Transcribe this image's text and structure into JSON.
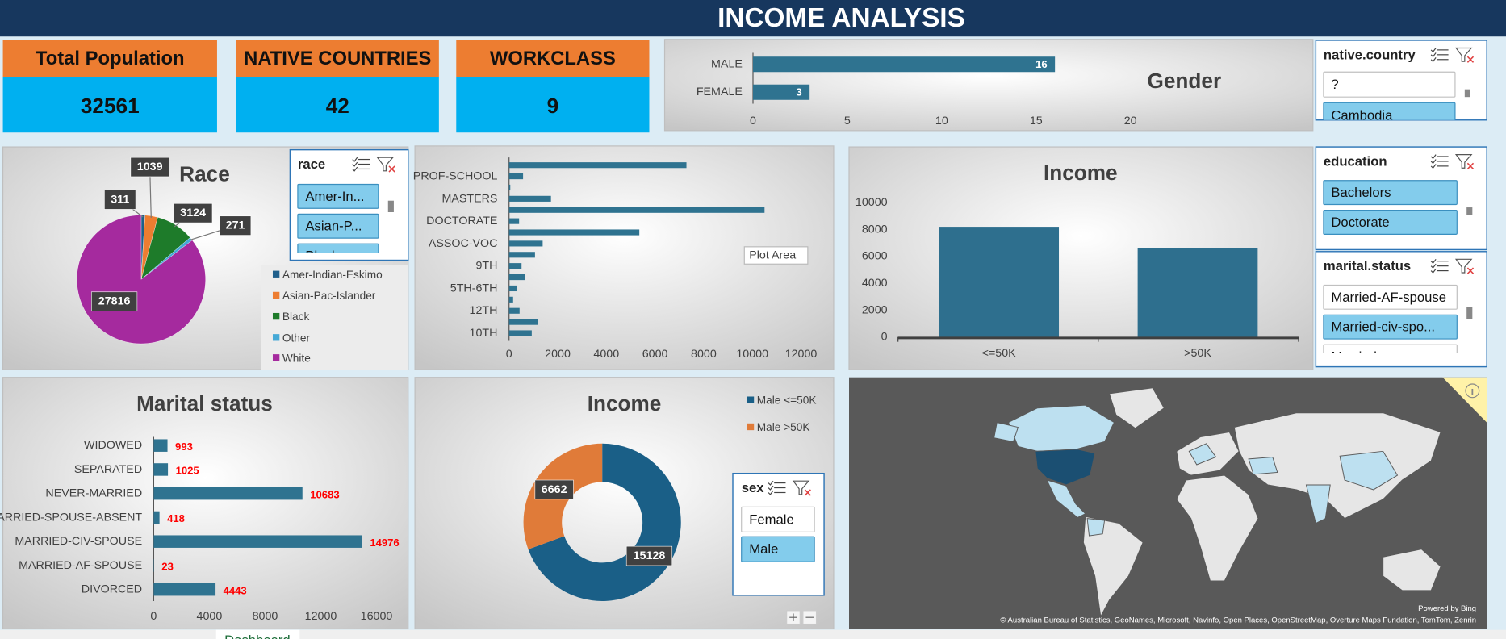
{
  "header": {
    "title": "INCOME ANALYSIS"
  },
  "kpis": [
    {
      "label": "Total Population",
      "value": 32561
    },
    {
      "label": "NATIVE COUNTRIES",
      "value": 42
    },
    {
      "label": "WORKCLASS",
      "value": 9
    }
  ],
  "chart_data": [
    {
      "type": "bar",
      "orientation": "horizontal",
      "title": "Gender",
      "categories": [
        "MALE",
        "FEMALE"
      ],
      "values": [
        16,
        3
      ],
      "color": "#2f7390",
      "data_labels": "inside_end",
      "label_color": "#ffffff",
      "xlim": [
        0,
        20
      ],
      "xticks": [
        0,
        5,
        10,
        15,
        20
      ]
    },
    {
      "type": "pie",
      "title": "Race",
      "categories": [
        "Amer-Indian-Eskimo",
        "Asian-Pac-Islander",
        "Black",
        "Other",
        "White"
      ],
      "values": [
        311,
        1039,
        3124,
        271,
        27816
      ],
      "colors": [
        "#1f5f8b",
        "#ed7d31",
        "#1e7b2a",
        "#45a9d6",
        "#a52a9e"
      ],
      "legend": "bottom-right"
    },
    {
      "type": "bar",
      "orientation": "horizontal",
      "categories": [
        null,
        "PROF-SCHOOL",
        null,
        "MASTERS",
        null,
        "DOCTORATE",
        null,
        "ASSOC-VOC",
        null,
        "9TH",
        null,
        "5TH-6TH",
        null,
        "12TH",
        null,
        "10TH"
      ],
      "values": [
        7291,
        576,
        51,
        1723,
        10501,
        413,
        5355,
        1382,
        1067,
        514,
        646,
        333,
        168,
        433,
        1175,
        933
      ],
      "color": "#2f7390",
      "annotation": "Plot Area",
      "xlim": [
        0,
        12000
      ],
      "xticks": [
        0,
        2000,
        4000,
        6000,
        8000,
        10000,
        12000
      ]
    },
    {
      "type": "column",
      "title": "Income",
      "categories": [
        "<=50K",
        ">50K"
      ],
      "values": [
        8200,
        6600
      ],
      "color": "#2e6f8e",
      "ylim": [
        0,
        10000
      ],
      "yticks": [
        0,
        2000,
        4000,
        6000,
        8000,
        10000
      ]
    },
    {
      "type": "bar",
      "orientation": "horizontal",
      "title": "Marital status",
      "categories": [
        "WIDOWED",
        "SEPARATED",
        "NEVER-MARRIED",
        "MARRIED-SPOUSE-ABSENT",
        "MARRIED-CIV-SPOUSE",
        "MARRIED-AF-SPOUSE",
        "DIVORCED"
      ],
      "values": [
        993,
        1025,
        10683,
        418,
        14976,
        23,
        4443
      ],
      "color": "#2f7390",
      "data_labels": "outside_end",
      "label_color": "#ff0000",
      "xlim": [
        0,
        16000
      ],
      "xticks": [
        0,
        4000,
        8000,
        12000,
        16000
      ]
    },
    {
      "type": "donut",
      "title": "Income",
      "categories": [
        "Male <=50K",
        "Male >50K"
      ],
      "values": [
        15128,
        6662
      ],
      "colors": [
        "#1a5f87",
        "#e07b39"
      ],
      "legend": "top-right"
    }
  ],
  "slicers": [
    {
      "title": "native.country",
      "items": [
        {
          "label": "?",
          "selected": false
        },
        {
          "label": "Cambodia",
          "selected": true
        }
      ]
    },
    {
      "title": "race",
      "items": [
        {
          "label": "Amer-In...",
          "selected": true
        },
        {
          "label": "Asian-P...",
          "selected": true
        },
        {
          "label": "Black",
          "selected": true
        }
      ]
    },
    {
      "title": "education",
      "items": [
        {
          "label": "Bachelors",
          "selected": true
        },
        {
          "label": "Doctorate",
          "selected": true
        }
      ]
    },
    {
      "title": "marital.status",
      "items": [
        {
          "label": "Married-AF-spouse",
          "selected": false
        },
        {
          "label": "Married-civ-spo...",
          "selected": true
        },
        {
          "label": "Married-spouse-...",
          "selected": false
        }
      ]
    },
    {
      "title": "sex",
      "items": [
        {
          "label": "Female",
          "selected": false
        },
        {
          "label": "Male",
          "selected": true
        }
      ]
    }
  ],
  "map": {
    "credit": "Powered by Bing",
    "attribution": "© Australian Bureau of Statistics, GeoNames, Microsoft, Navinfo, Open Places, OpenStreetMap, Overture Maps Fundation, TomTom, Zenrin"
  },
  "sheet_tab": "Dashboard"
}
